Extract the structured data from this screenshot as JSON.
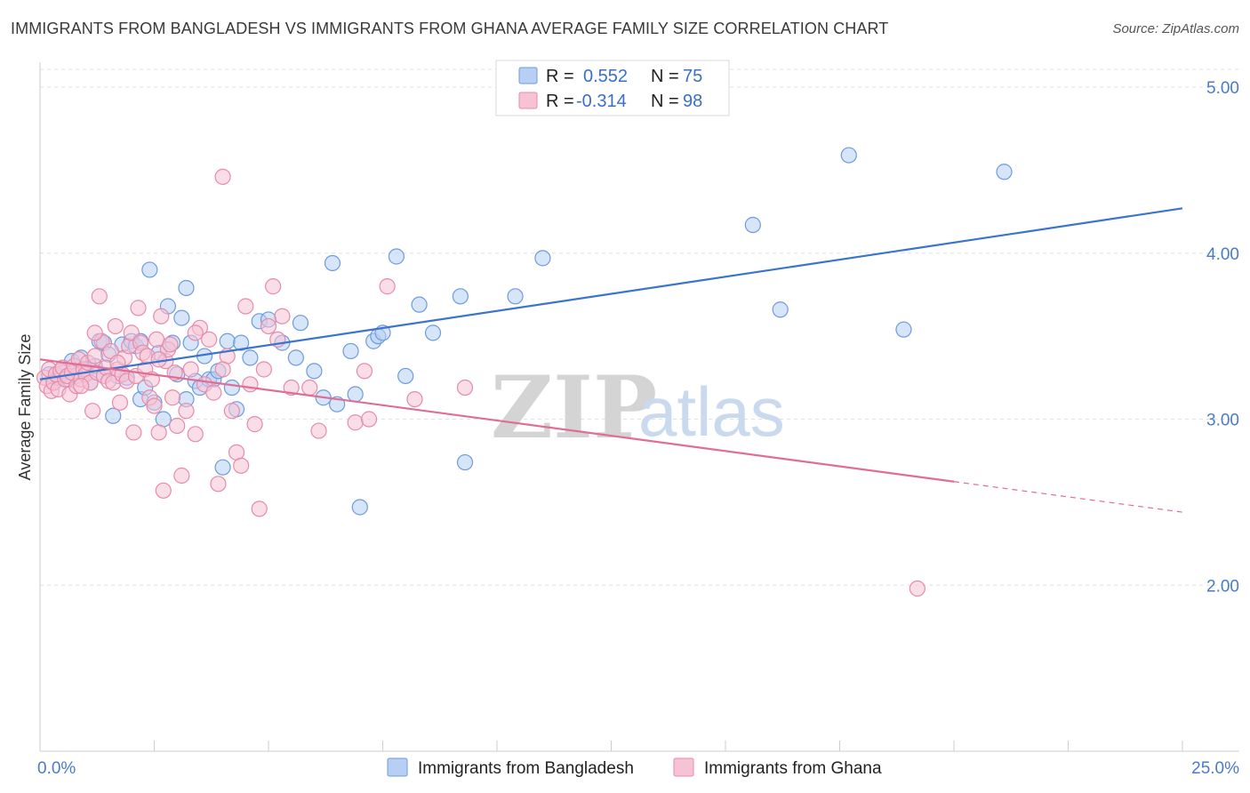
{
  "title": "IMMIGRANTS FROM BANGLADESH VS IMMIGRANTS FROM GHANA AVERAGE FAMILY SIZE CORRELATION CHART",
  "source": "Source: ZipAtlas.com",
  "watermark": {
    "zip": "ZIP",
    "atlas": "atlas"
  },
  "chart_data": {
    "type": "scatter",
    "title": "IMMIGRANTS FROM BANGLADESH VS IMMIGRANTS FROM GHANA AVERAGE FAMILY SIZE CORRELATION CHART",
    "xlabel": "",
    "ylabel": "Average Family Size",
    "xlim": [
      0,
      25
    ],
    "ylim": [
      1.0,
      5.15
    ],
    "x_tick_labels": {
      "min": "0.0%",
      "max": "25.0%"
    },
    "y_ticks": [
      {
        "value": 5.0,
        "label": "5.00"
      },
      {
        "value": 4.0,
        "label": "4.00"
      },
      {
        "value": 3.0,
        "label": "3.00"
      },
      {
        "value": 2.0,
        "label": "2.00"
      }
    ],
    "grid": true,
    "legend_position": "top-center",
    "series": [
      {
        "name": "Immigrants from Bangladesh",
        "color": "#6d9be0",
        "fill": "#b7cff2",
        "r_label": "R =",
        "r_value": "0.552",
        "n_label": "N =",
        "n_value": "75",
        "trend": {
          "x0": 0.0,
          "y0": 3.24,
          "x1": 25.0,
          "y1": 4.27,
          "dash_from": null
        },
        "points": [
          [
            0.2,
            3.27
          ],
          [
            0.3,
            3.22
          ],
          [
            0.4,
            3.25
          ],
          [
            0.5,
            3.28
          ],
          [
            0.6,
            3.24
          ],
          [
            0.7,
            3.35
          ],
          [
            0.8,
            3.26
          ],
          [
            0.9,
            3.37
          ],
          [
            1.0,
            3.3
          ],
          [
            1.1,
            3.22
          ],
          [
            1.2,
            3.32
          ],
          [
            1.3,
            3.47
          ],
          [
            1.4,
            3.46
          ],
          [
            1.5,
            3.39
          ],
          [
            1.6,
            3.02
          ],
          [
            1.7,
            3.26
          ],
          [
            1.8,
            3.45
          ],
          [
            1.9,
            3.25
          ],
          [
            2.0,
            3.47
          ],
          [
            2.1,
            3.44
          ],
          [
            2.2,
            3.12
          ],
          [
            2.3,
            3.19
          ],
          [
            2.4,
            3.9
          ],
          [
            2.5,
            3.1
          ],
          [
            2.6,
            3.4
          ],
          [
            2.7,
            3.0
          ],
          [
            2.8,
            3.68
          ],
          [
            2.9,
            3.46
          ],
          [
            3.0,
            3.27
          ],
          [
            3.1,
            3.61
          ],
          [
            3.2,
            3.79
          ],
          [
            3.3,
            3.46
          ],
          [
            3.4,
            3.23
          ],
          [
            3.5,
            3.19
          ],
          [
            3.6,
            3.38
          ],
          [
            3.7,
            3.24
          ],
          [
            3.8,
            3.24
          ],
          [
            3.9,
            3.29
          ],
          [
            4.0,
            2.71
          ],
          [
            4.1,
            3.47
          ],
          [
            4.2,
            3.19
          ],
          [
            4.3,
            3.06
          ],
          [
            4.4,
            3.46
          ],
          [
            4.6,
            3.37
          ],
          [
            4.8,
            3.59
          ],
          [
            5.0,
            3.6
          ],
          [
            5.3,
            3.46
          ],
          [
            5.6,
            3.37
          ],
          [
            5.7,
            3.58
          ],
          [
            6.0,
            3.29
          ],
          [
            6.2,
            3.13
          ],
          [
            6.4,
            3.94
          ],
          [
            6.5,
            3.09
          ],
          [
            6.8,
            3.41
          ],
          [
            6.9,
            3.15
          ],
          [
            7.0,
            2.47
          ],
          [
            7.3,
            3.47
          ],
          [
            7.4,
            3.5
          ],
          [
            7.5,
            3.52
          ],
          [
            7.8,
            3.98
          ],
          [
            8.0,
            3.26
          ],
          [
            8.3,
            3.69
          ],
          [
            8.6,
            3.52
          ],
          [
            9.2,
            3.74
          ],
          [
            9.3,
            2.74
          ],
          [
            10.4,
            3.74
          ],
          [
            11.0,
            3.97
          ],
          [
            15.6,
            4.17
          ],
          [
            16.2,
            3.66
          ],
          [
            17.7,
            4.59
          ],
          [
            18.9,
            3.54
          ],
          [
            21.1,
            4.49
          ],
          [
            1.4,
            3.26
          ],
          [
            2.2,
            3.47
          ],
          [
            3.2,
            3.12
          ]
        ]
      },
      {
        "name": "Immigrants from Ghana",
        "color": "#e88aaa",
        "fill": "#f6c3d3",
        "r_label": "R =",
        "r_value": "-0.314",
        "n_label": "N =",
        "n_value": "98",
        "trend": {
          "x0": 0.0,
          "y0": 3.36,
          "x1": 25.0,
          "y1": 2.44,
          "dash_from": 20.0
        },
        "points": [
          [
            0.1,
            3.25
          ],
          [
            0.15,
            3.2
          ],
          [
            0.2,
            3.3
          ],
          [
            0.25,
            3.17
          ],
          [
            0.3,
            3.22
          ],
          [
            0.35,
            3.27
          ],
          [
            0.4,
            3.18
          ],
          [
            0.45,
            3.29
          ],
          [
            0.5,
            3.31
          ],
          [
            0.55,
            3.24
          ],
          [
            0.6,
            3.26
          ],
          [
            0.65,
            3.15
          ],
          [
            0.7,
            3.28
          ],
          [
            0.75,
            3.32
          ],
          [
            0.8,
            3.2
          ],
          [
            0.85,
            3.36
          ],
          [
            0.9,
            3.24
          ],
          [
            0.95,
            3.3
          ],
          [
            1.0,
            3.27
          ],
          [
            1.05,
            3.34
          ],
          [
            1.1,
            3.22
          ],
          [
            1.15,
            3.05
          ],
          [
            1.2,
            3.38
          ],
          [
            1.25,
            3.28
          ],
          [
            1.3,
            3.74
          ],
          [
            1.35,
            3.47
          ],
          [
            1.4,
            3.26
          ],
          [
            1.45,
            3.31
          ],
          [
            1.5,
            3.23
          ],
          [
            1.55,
            3.41
          ],
          [
            1.6,
            3.22
          ],
          [
            1.65,
            3.56
          ],
          [
            1.7,
            3.3
          ],
          [
            1.75,
            3.1
          ],
          [
            1.8,
            3.27
          ],
          [
            1.85,
            3.37
          ],
          [
            1.9,
            3.23
          ],
          [
            1.95,
            3.44
          ],
          [
            2.0,
            3.52
          ],
          [
            2.05,
            2.92
          ],
          [
            2.1,
            3.26
          ],
          [
            2.15,
            3.67
          ],
          [
            2.2,
            3.46
          ],
          [
            2.25,
            3.4
          ],
          [
            2.3,
            3.3
          ],
          [
            2.35,
            3.38
          ],
          [
            2.4,
            3.13
          ],
          [
            2.45,
            3.24
          ],
          [
            2.5,
            3.08
          ],
          [
            2.55,
            3.48
          ],
          [
            2.6,
            2.92
          ],
          [
            2.65,
            3.62
          ],
          [
            2.7,
            2.57
          ],
          [
            2.75,
            3.35
          ],
          [
            2.8,
            3.42
          ],
          [
            2.85,
            3.45
          ],
          [
            2.9,
            3.13
          ],
          [
            2.95,
            3.28
          ],
          [
            3.0,
            2.96
          ],
          [
            3.1,
            2.66
          ],
          [
            3.2,
            3.05
          ],
          [
            3.3,
            3.3
          ],
          [
            3.4,
            2.91
          ],
          [
            3.5,
            3.55
          ],
          [
            3.6,
            3.21
          ],
          [
            3.7,
            3.48
          ],
          [
            3.8,
            3.16
          ],
          [
            3.9,
            2.61
          ],
          [
            4.0,
            4.46
          ],
          [
            4.1,
            3.38
          ],
          [
            4.2,
            3.05
          ],
          [
            4.3,
            2.8
          ],
          [
            4.4,
            2.72
          ],
          [
            4.5,
            3.68
          ],
          [
            4.6,
            3.21
          ],
          [
            4.7,
            2.97
          ],
          [
            4.8,
            2.46
          ],
          [
            4.9,
            3.3
          ],
          [
            5.0,
            3.56
          ],
          [
            5.1,
            3.8
          ],
          [
            5.2,
            3.48
          ],
          [
            5.3,
            3.62
          ],
          [
            5.5,
            3.19
          ],
          [
            5.9,
            3.19
          ],
          [
            6.1,
            2.93
          ],
          [
            6.9,
            2.98
          ],
          [
            7.1,
            3.29
          ],
          [
            7.2,
            3.0
          ],
          [
            7.6,
            3.8
          ],
          [
            8.2,
            3.12
          ],
          [
            9.3,
            3.19
          ],
          [
            19.2,
            1.98
          ],
          [
            1.2,
            3.52
          ],
          [
            2.6,
            3.36
          ],
          [
            3.4,
            3.52
          ],
          [
            4.0,
            3.3
          ],
          [
            0.9,
            3.2
          ],
          [
            1.7,
            3.34
          ]
        ]
      }
    ]
  },
  "bottom_legend": [
    {
      "label": "Immigrants from Bangladesh"
    },
    {
      "label": "Immigrants from Ghana"
    }
  ]
}
